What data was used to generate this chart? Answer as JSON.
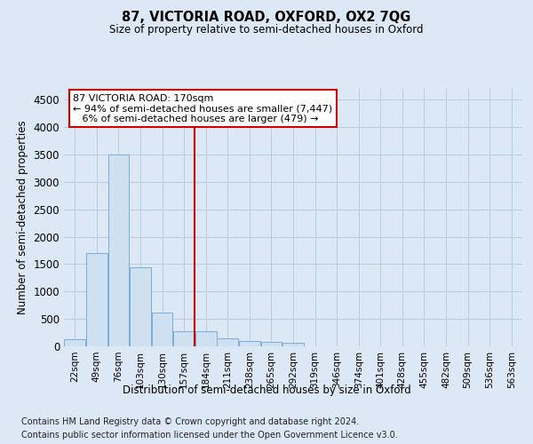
{
  "title1": "87, VICTORIA ROAD, OXFORD, OX2 7QG",
  "title2": "Size of property relative to semi-detached houses in Oxford",
  "xlabel": "Distribution of semi-detached houses by size in Oxford",
  "ylabel": "Number of semi-detached properties",
  "footnote1": "Contains HM Land Registry data © Crown copyright and database right 2024.",
  "footnote2": "Contains public sector information licensed under the Open Government Licence v3.0.",
  "bin_labels": [
    "22sqm",
    "49sqm",
    "76sqm",
    "103sqm",
    "130sqm",
    "157sqm",
    "184sqm",
    "211sqm",
    "238sqm",
    "265sqm",
    "292sqm",
    "319sqm",
    "346sqm",
    "374sqm",
    "401sqm",
    "428sqm",
    "455sqm",
    "482sqm",
    "509sqm",
    "536sqm",
    "563sqm"
  ],
  "bar_values": [
    130,
    1700,
    3500,
    1450,
    620,
    270,
    270,
    150,
    100,
    80,
    60,
    0,
    0,
    0,
    0,
    0,
    0,
    0,
    0,
    0,
    0
  ],
  "bar_color": "#cfe0f0",
  "bar_edge_color": "#7aadda",
  "vline_x_index": 6,
  "vline_color": "#cc0000",
  "ann_line1": "87 VICTORIA ROAD: 170sqm",
  "ann_line2": "← 94% of semi-detached houses are smaller (7,447)",
  "ann_line3": "   6% of semi-detached houses are larger (479) →",
  "annotation_box_color": "#ffffff",
  "annotation_box_edge": "#cc0000",
  "ylim": [
    0,
    4700
  ],
  "yticks": [
    0,
    500,
    1000,
    1500,
    2000,
    2500,
    3000,
    3500,
    4000,
    4500
  ],
  "grid_color": "#b8cde0",
  "bg_color": "#dce8f5"
}
